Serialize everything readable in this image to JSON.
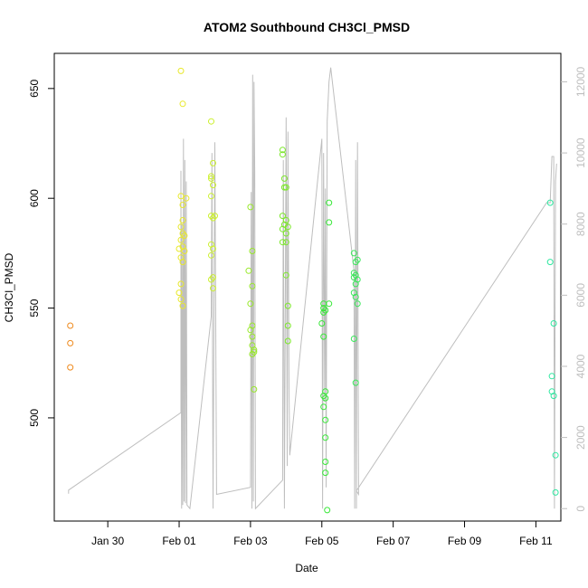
{
  "chart_data": {
    "type": "scatter",
    "title": "ATOM2 Southbound CH3Cl_PMSD",
    "xlabel": "Date",
    "ylabel": "CH3Cl_PMSD",
    "x_ticks": [
      "Jan 30",
      "Feb 01",
      "Feb 03",
      "Feb 05",
      "Feb 07",
      "Feb 09",
      "Feb 11"
    ],
    "x_tick_days": [
      30,
      32,
      34,
      36,
      38,
      40,
      42
    ],
    "xlim_days": [
      28.5,
      42.7
    ],
    "ylim": [
      453,
      666
    ],
    "y_ticks": [
      500,
      550,
      600,
      650
    ],
    "y2lim": [
      -350,
      12800
    ],
    "y2_ticks": [
      0,
      2000,
      4000,
      6000,
      8000,
      10000,
      12000
    ],
    "y2_color": "#bebebe",
    "series": [
      {
        "color": "#ee8a1e",
        "points": [
          [
            28.95,
            542
          ],
          [
            28.95,
            534
          ],
          [
            28.95,
            523
          ]
        ]
      },
      {
        "color": "#e8e82a",
        "points": [
          [
            32.05,
            658
          ],
          [
            32.1,
            643
          ],
          [
            32.05,
            601
          ],
          [
            32.1,
            597
          ],
          [
            32.1,
            590
          ],
          [
            32.05,
            587
          ],
          [
            32.1,
            584
          ],
          [
            32.05,
            581
          ],
          [
            32.1,
            578
          ],
          [
            32.0,
            577
          ],
          [
            32.15,
            576
          ],
          [
            32.05,
            573
          ],
          [
            32.1,
            571
          ],
          [
            32.05,
            561
          ],
          [
            32.0,
            557
          ],
          [
            32.05,
            554
          ],
          [
            32.1,
            551
          ],
          [
            32.15,
            583
          ],
          [
            32.2,
            600
          ]
        ]
      },
      {
        "color": "#ccf02e",
        "points": [
          [
            32.9,
            635
          ],
          [
            32.95,
            616
          ],
          [
            32.9,
            610
          ],
          [
            32.9,
            609
          ],
          [
            32.95,
            606
          ],
          [
            32.9,
            601
          ],
          [
            32.9,
            592
          ],
          [
            32.95,
            591
          ],
          [
            33.0,
            592
          ],
          [
            32.9,
            579
          ],
          [
            32.95,
            577
          ],
          [
            32.9,
            574
          ],
          [
            32.95,
            564
          ],
          [
            32.9,
            563
          ],
          [
            32.95,
            559
          ]
        ]
      },
      {
        "color": "#98e82a",
        "points": [
          [
            34.0,
            596
          ],
          [
            34.05,
            576
          ],
          [
            33.95,
            567
          ],
          [
            34.05,
            560
          ],
          [
            34.0,
            552
          ],
          [
            34.05,
            542
          ],
          [
            34.0,
            540
          ],
          [
            34.05,
            537
          ],
          [
            34.1,
            531
          ],
          [
            34.05,
            529
          ],
          [
            34.1,
            530
          ],
          [
            34.05,
            533
          ],
          [
            34.1,
            513
          ]
        ]
      },
      {
        "color": "#7ce82a",
        "points": [
          [
            34.9,
            622
          ],
          [
            34.9,
            620
          ],
          [
            34.95,
            609
          ],
          [
            34.95,
            605
          ],
          [
            35.0,
            605
          ],
          [
            34.9,
            592
          ],
          [
            35.0,
            590
          ],
          [
            34.95,
            588
          ],
          [
            35.05,
            587
          ],
          [
            34.9,
            586
          ],
          [
            35.0,
            584
          ],
          [
            35.0,
            580
          ],
          [
            34.9,
            580
          ],
          [
            35.0,
            565
          ],
          [
            35.05,
            551
          ],
          [
            35.05,
            542
          ],
          [
            35.05,
            535
          ]
        ]
      },
      {
        "color": "#38e838",
        "points": [
          [
            36.05,
            552
          ],
          [
            36.05,
            550
          ],
          [
            36.1,
            549
          ],
          [
            36.05,
            548
          ],
          [
            36.0,
            543
          ],
          [
            36.05,
            537
          ],
          [
            36.1,
            512
          ],
          [
            36.05,
            510
          ],
          [
            36.1,
            509
          ],
          [
            36.05,
            505
          ],
          [
            36.1,
            499
          ],
          [
            36.1,
            491
          ],
          [
            36.1,
            480
          ],
          [
            36.1,
            475
          ],
          [
            36.15,
            458
          ],
          [
            36.2,
            598
          ],
          [
            36.2,
            589
          ],
          [
            36.2,
            552
          ]
        ]
      },
      {
        "color": "#3ae85a",
        "points": [
          [
            36.9,
            575
          ],
          [
            36.95,
            571
          ],
          [
            37.0,
            572
          ],
          [
            36.9,
            566
          ],
          [
            36.95,
            565
          ],
          [
            36.9,
            564
          ],
          [
            37.0,
            563
          ],
          [
            36.95,
            561
          ],
          [
            36.9,
            557
          ],
          [
            36.95,
            555
          ],
          [
            37.0,
            552
          ],
          [
            36.9,
            536
          ],
          [
            36.95,
            516
          ]
        ]
      },
      {
        "color": "#2ee8a0",
        "points": [
          [
            42.4,
            598
          ],
          [
            42.4,
            571
          ],
          [
            42.5,
            543
          ],
          [
            42.45,
            519
          ],
          [
            42.45,
            512
          ],
          [
            42.5,
            510
          ],
          [
            42.55,
            483
          ],
          [
            42.55,
            466
          ]
        ]
      }
    ],
    "y2_series": {
      "name": "",
      "color": "#bebebe",
      "points": [
        [
          28.9,
          420
        ],
        [
          28.9,
          520
        ],
        [
          32.05,
          2700
        ],
        [
          32.05,
          9500
        ],
        [
          32.07,
          0
        ],
        [
          32.08,
          8000
        ],
        [
          32.1,
          100
        ],
        [
          32.12,
          10400
        ],
        [
          32.14,
          200
        ],
        [
          32.16,
          9800
        ],
        [
          32.18,
          150
        ],
        [
          32.2,
          9200
        ],
        [
          32.22,
          100
        ],
        [
          32.3,
          0
        ],
        [
          32.9,
          5400
        ],
        [
          32.92,
          10000
        ],
        [
          32.95,
          0
        ],
        [
          33.0,
          10300
        ],
        [
          33.05,
          400
        ],
        [
          34.0,
          600
        ],
        [
          34.02,
          8900
        ],
        [
          34.04,
          0
        ],
        [
          34.06,
          12200
        ],
        [
          34.08,
          200
        ],
        [
          34.1,
          12000
        ],
        [
          34.12,
          9500
        ],
        [
          34.14,
          0
        ],
        [
          34.9,
          800
        ],
        [
          34.92,
          9800
        ],
        [
          34.95,
          0
        ],
        [
          35.0,
          11000
        ],
        [
          35.03,
          1200
        ],
        [
          35.05,
          10600
        ],
        [
          35.08,
          3400
        ],
        [
          35.1,
          1500
        ],
        [
          36.0,
          10400
        ],
        [
          36.02,
          0
        ],
        [
          36.05,
          10000
        ],
        [
          36.08,
          3000
        ],
        [
          36.1,
          9000
        ],
        [
          36.12,
          600
        ],
        [
          36.15,
          10900
        ],
        [
          36.2,
          12000
        ],
        [
          36.25,
          12400
        ],
        [
          36.9,
          6700
        ],
        [
          36.92,
          0
        ],
        [
          36.95,
          9800
        ],
        [
          36.97,
          0
        ],
        [
          37.0,
          10300
        ],
        [
          37.03,
          400
        ],
        [
          36.97,
          500
        ],
        [
          42.3,
          8600
        ],
        [
          42.4,
          8600
        ],
        [
          42.45,
          9900
        ],
        [
          42.5,
          9900
        ],
        [
          42.52,
          0
        ],
        [
          42.55,
          9200
        ],
        [
          42.58,
          9700
        ]
      ]
    }
  }
}
